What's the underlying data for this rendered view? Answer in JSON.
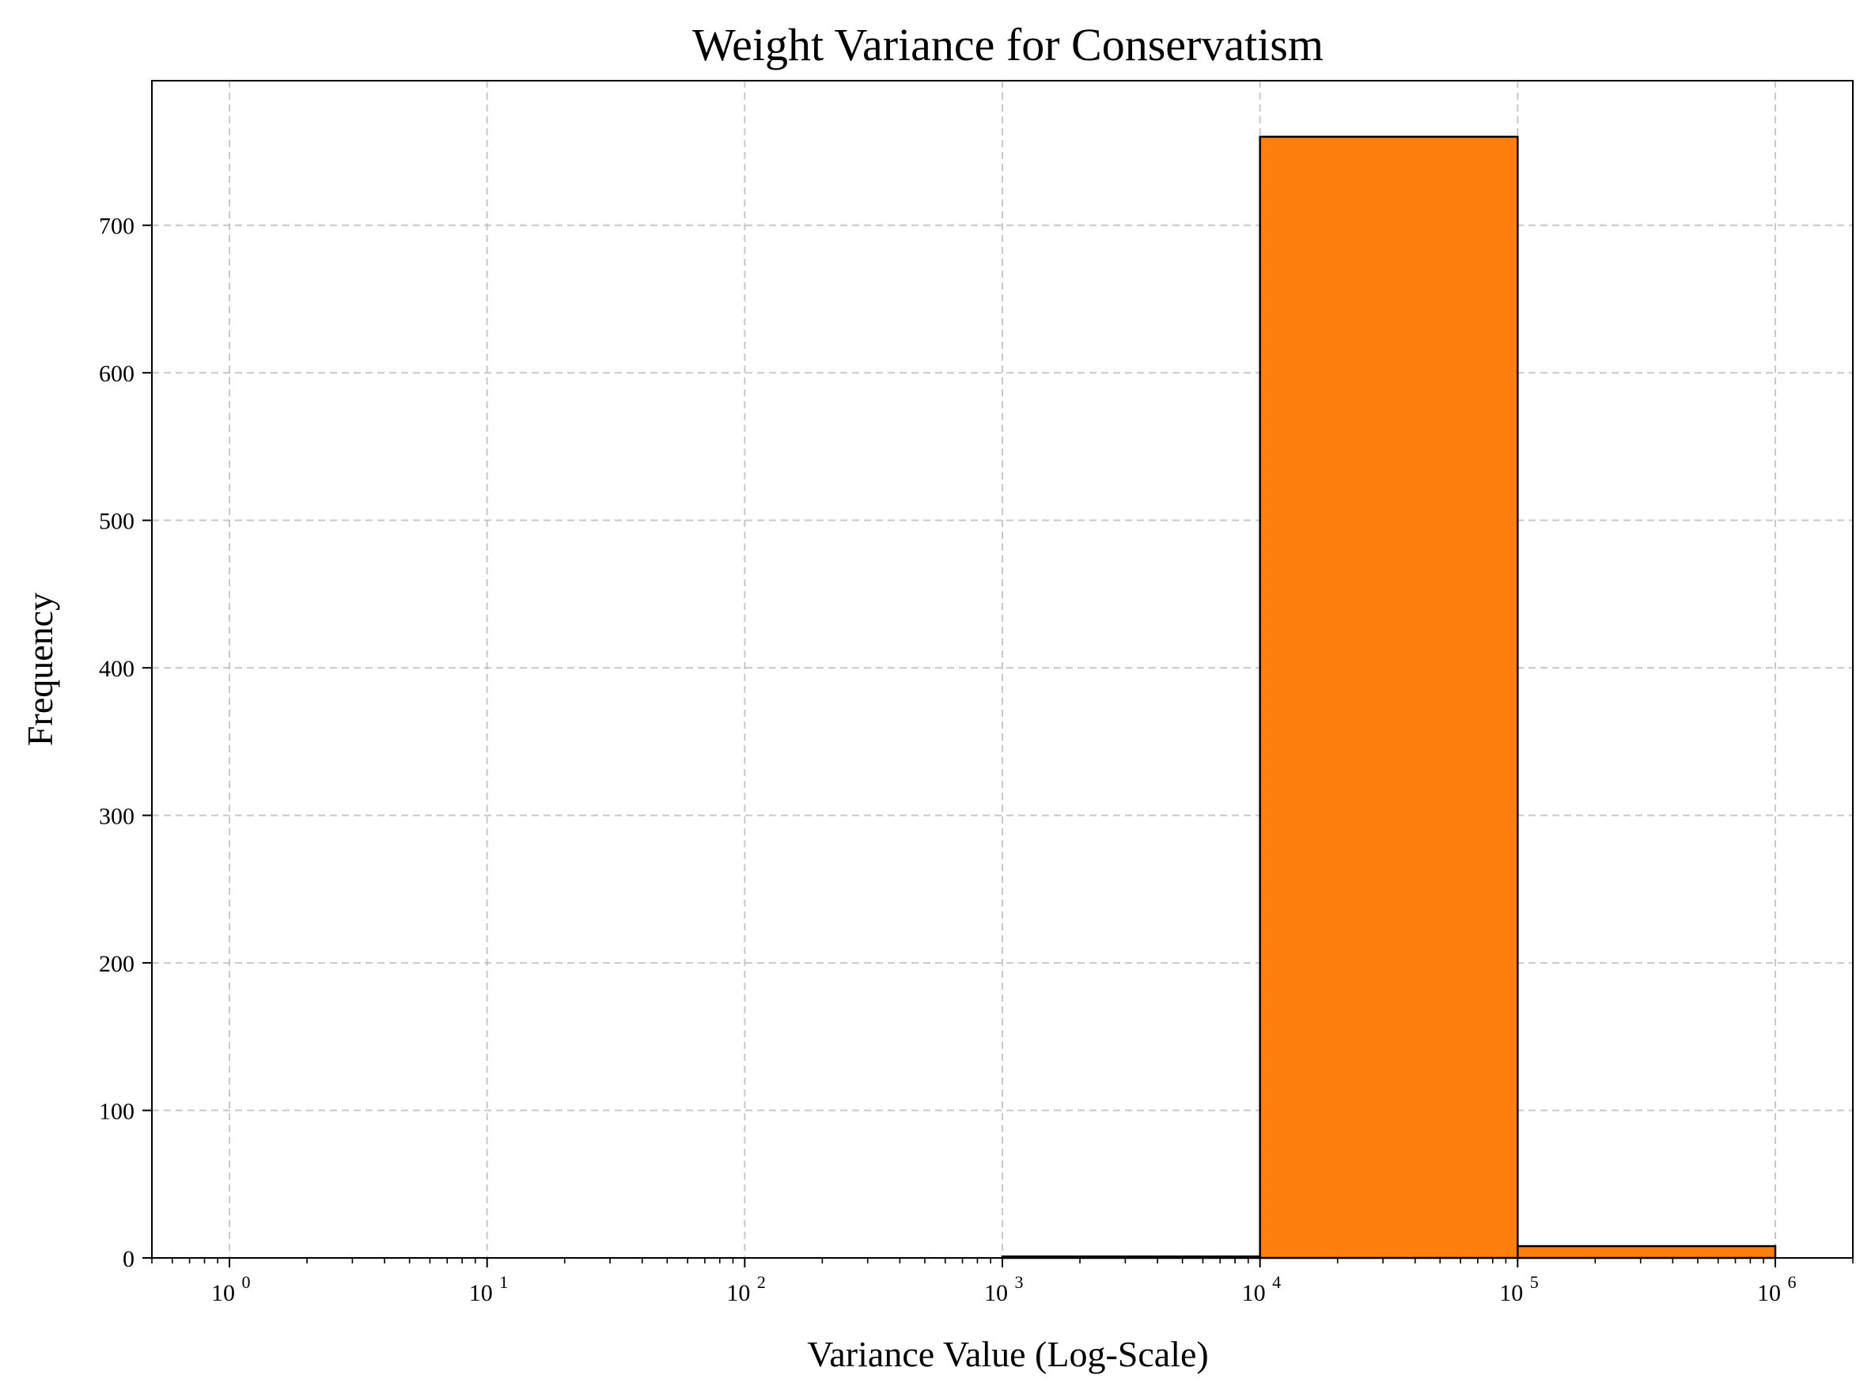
{
  "chart_data": {
    "type": "bar",
    "subtype": "histogram",
    "title": "Weight Variance for Conservatism",
    "xlabel": "Variance Value (Log-Scale)",
    "ylabel": "Frequency",
    "x_scale": "log",
    "xlim": [
      0.5,
      2000000
    ],
    "ylim": [
      0,
      798
    ],
    "grid": true,
    "bar_color": "#ff7f0e",
    "edge_color": "#000000",
    "x_ticks": [
      {
        "base": "10",
        "exp": "0",
        "value": 1
      },
      {
        "base": "10",
        "exp": "1",
        "value": 10
      },
      {
        "base": "10",
        "exp": "2",
        "value": 100
      },
      {
        "base": "10",
        "exp": "3",
        "value": 1000
      },
      {
        "base": "10",
        "exp": "4",
        "value": 10000
      },
      {
        "base": "10",
        "exp": "5",
        "value": 100000
      },
      {
        "base": "10",
        "exp": "6",
        "value": 1000000
      }
    ],
    "y_ticks": [
      "0",
      "100",
      "200",
      "300",
      "400",
      "500",
      "600",
      "700"
    ],
    "bins": [
      {
        "x0": 1,
        "x1": 10,
        "count": 0
      },
      {
        "x0": 10,
        "x1": 100,
        "count": 0
      },
      {
        "x0": 100,
        "x1": 1000,
        "count": 0
      },
      {
        "x0": 1000,
        "x1": 10000,
        "count": 1
      },
      {
        "x0": 10000,
        "x1": 100000,
        "count": 760
      },
      {
        "x0": 100000,
        "x1": 1000000,
        "count": 8
      }
    ]
  }
}
